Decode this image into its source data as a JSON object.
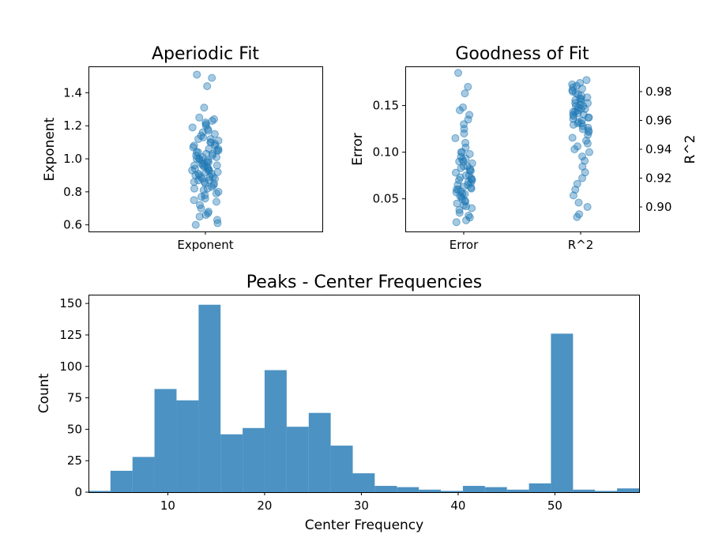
{
  "colors": {
    "series": "#1f77b4",
    "axes": "#000000",
    "background": "#ffffff"
  },
  "chart_data": [
    {
      "type": "scatter",
      "title": "Aperiodic Fit",
      "ylabel": "Exponent",
      "xlabel": "",
      "categories": [
        "Exponent"
      ],
      "ylim": [
        0.56,
        1.56
      ],
      "yticks": [
        "0.6",
        "0.8",
        "1.0",
        "1.2",
        "1.4"
      ],
      "marker_alpha": 0.4,
      "series": [
        {
          "category": "Exponent",
          "values": [
            1.51,
            1.49,
            1.44,
            1.31,
            1.25,
            1.24,
            1.23,
            1.22,
            1.21,
            1.2,
            1.19,
            1.18,
            1.17,
            1.16,
            1.15,
            1.14,
            1.13,
            1.12,
            1.11,
            1.1,
            1.09,
            1.08,
            1.07,
            1.06,
            1.05,
            1.04,
            1.03,
            1.02,
            1.01,
            1.0,
            0.99,
            0.98,
            0.97,
            0.96,
            0.95,
            0.94,
            0.93,
            0.92,
            0.91,
            0.9,
            0.89,
            0.88,
            0.87,
            0.86,
            0.85,
            0.84,
            0.83,
            0.82,
            0.81,
            0.8,
            0.79,
            0.78,
            0.77,
            0.76,
            0.75,
            0.74,
            0.72,
            0.7,
            0.68,
            0.67,
            0.66,
            0.65,
            0.63,
            0.61,
            0.6,
            1.12,
            1.08,
            1.05,
            1.03,
            1.01,
            0.99,
            0.97,
            0.95,
            0.93,
            0.91,
            0.89,
            0.87,
            0.85,
            1.06,
            1.0,
            0.96,
            0.92,
            0.88,
            1.1,
            1.02,
            0.98,
            0.94,
            0.9,
            0.86,
            0.82,
            1.04,
            1.0,
            0.96,
            0.93,
            0.89
          ]
        }
      ]
    },
    {
      "type": "scatter",
      "title": "Goodness of Fit",
      "ylabel": "Error",
      "ylabel_right": "R^2",
      "xlabel": "",
      "categories": [
        "Error",
        "R^2"
      ],
      "ylim": [
        0.015,
        0.192
      ],
      "yticks": [
        "0.05",
        "0.10",
        "0.15"
      ],
      "ylim_right": [
        0.883,
        0.9975
      ],
      "yticks_right": [
        "0.90",
        "0.92",
        "0.94",
        "0.96",
        "0.98"
      ],
      "marker_alpha": 0.4,
      "series": [
        {
          "category": "Error",
          "axis": "left",
          "values": [
            0.185,
            0.17,
            0.163,
            0.148,
            0.145,
            0.14,
            0.135,
            0.13,
            0.125,
            0.12,
            0.115,
            0.11,
            0.105,
            0.1,
            0.098,
            0.095,
            0.092,
            0.09,
            0.088,
            0.085,
            0.082,
            0.08,
            0.078,
            0.075,
            0.072,
            0.07,
            0.068,
            0.065,
            0.062,
            0.06,
            0.058,
            0.055,
            0.052,
            0.05,
            0.048,
            0.045,
            0.042,
            0.04,
            0.038,
            0.035,
            0.032,
            0.03,
            0.027,
            0.025,
            0.085,
            0.075,
            0.065,
            0.06,
            0.055,
            0.07,
            0.08,
            0.09,
            0.1,
            0.063,
            0.057,
            0.067,
            0.073,
            0.083,
            0.093,
            0.047,
            0.043,
            0.053,
            0.061,
            0.071
          ]
        },
        {
          "category": "R^2",
          "axis": "right",
          "values": [
            0.988,
            0.986,
            0.984,
            0.982,
            0.98,
            0.978,
            0.976,
            0.974,
            0.972,
            0.97,
            0.968,
            0.966,
            0.964,
            0.962,
            0.96,
            0.958,
            0.956,
            0.954,
            0.952,
            0.95,
            0.948,
            0.946,
            0.944,
            0.942,
            0.94,
            0.938,
            0.935,
            0.932,
            0.928,
            0.924,
            0.92,
            0.916,
            0.912,
            0.908,
            0.903,
            0.9,
            0.895,
            0.893,
            0.985,
            0.981,
            0.977,
            0.973,
            0.969,
            0.965,
            0.961,
            0.957,
            0.953,
            0.983,
            0.979,
            0.975,
            0.971,
            0.967,
            0.963,
            0.959,
            0.955,
            0.975,
            0.97,
            0.966,
            0.962,
            0.958,
            0.972,
            0.968,
            0.964
          ]
        }
      ]
    },
    {
      "type": "bar",
      "subtype": "histogram",
      "title": "Peaks - Center Frequencies",
      "xlabel": "Center Frequency",
      "ylabel": "Count",
      "xlim": [
        1.8,
        58.7
      ],
      "ylim": [
        0,
        157
      ],
      "xticks": [
        "10",
        "20",
        "30",
        "40",
        "50"
      ],
      "yticks": [
        "0",
        "25",
        "50",
        "75",
        "100",
        "125",
        "150"
      ],
      "bar_alpha": 0.8,
      "bins": [
        {
          "start": 1.8,
          "end": 4.07,
          "count": 1
        },
        {
          "start": 4.07,
          "end": 6.35,
          "count": 17
        },
        {
          "start": 6.35,
          "end": 8.62,
          "count": 28
        },
        {
          "start": 8.62,
          "end": 10.9,
          "count": 82
        },
        {
          "start": 10.9,
          "end": 13.18,
          "count": 73
        },
        {
          "start": 13.18,
          "end": 15.45,
          "count": 149
        },
        {
          "start": 15.45,
          "end": 17.73,
          "count": 46
        },
        {
          "start": 17.73,
          "end": 20.0,
          "count": 51
        },
        {
          "start": 20.0,
          "end": 22.28,
          "count": 97
        },
        {
          "start": 22.28,
          "end": 24.56,
          "count": 52
        },
        {
          "start": 24.56,
          "end": 26.83,
          "count": 63
        },
        {
          "start": 26.83,
          "end": 29.11,
          "count": 37
        },
        {
          "start": 29.11,
          "end": 31.38,
          "count": 15
        },
        {
          "start": 31.38,
          "end": 33.66,
          "count": 5
        },
        {
          "start": 33.66,
          "end": 35.94,
          "count": 4
        },
        {
          "start": 35.94,
          "end": 38.21,
          "count": 2
        },
        {
          "start": 38.21,
          "end": 40.49,
          "count": 1
        },
        {
          "start": 40.49,
          "end": 42.76,
          "count": 5
        },
        {
          "start": 42.76,
          "end": 45.04,
          "count": 4
        },
        {
          "start": 45.04,
          "end": 47.32,
          "count": 2
        },
        {
          "start": 47.32,
          "end": 49.59,
          "count": 7
        },
        {
          "start": 49.59,
          "end": 51.87,
          "count": 126
        },
        {
          "start": 51.87,
          "end": 54.14,
          "count": 2
        },
        {
          "start": 54.14,
          "end": 56.42,
          "count": 1
        },
        {
          "start": 56.42,
          "end": 58.7,
          "count": 3
        }
      ]
    }
  ]
}
